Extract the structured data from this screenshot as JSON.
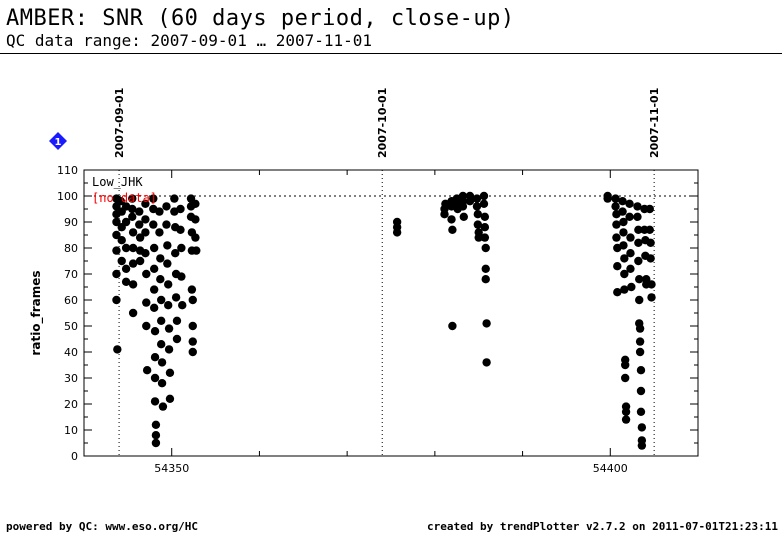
{
  "header": {
    "title": "AMBER: SNR (60 days period, close-up)",
    "subtitle": "QC data range: 2007-09-01 … 2007-11-01"
  },
  "footer": {
    "left": "powered by QC: www.eso.org/HC",
    "right": "created by trendPlotter v2.7.2 on 2011-07-01T21:23:11"
  },
  "colors": {
    "points": "#000000",
    "no_data": "#ff0000",
    "badge": "#1a1aff"
  },
  "chart_data": {
    "type": "scatter",
    "title": "Low_JHK",
    "annotation": "[no data]",
    "badge": "1",
    "xlabel": "",
    "ylabel": "ratio_frames",
    "xlim": [
      54340,
      54410
    ],
    "ylim": [
      0,
      110
    ],
    "x_ticks": [
      54350,
      54400
    ],
    "y_ticks": [
      0,
      10,
      20,
      30,
      40,
      50,
      60,
      70,
      80,
      90,
      100,
      110
    ],
    "reference_line": 100,
    "date_markers": [
      {
        "x": 54344.0,
        "label": "2007-09-01"
      },
      {
        "x": 54374.0,
        "label": "2007-10-01"
      },
      {
        "x": 54405.0,
        "label": "2007-11-01"
      }
    ],
    "series": [
      {
        "name": "Low_JHK",
        "points": [
          [
            54343.7,
            99
          ],
          [
            54343.7,
            96
          ],
          [
            54343.7,
            93
          ],
          [
            54343.7,
            90
          ],
          [
            54343.7,
            85
          ],
          [
            54343.7,
            79
          ],
          [
            54343.7,
            70
          ],
          [
            54343.7,
            60
          ],
          [
            54343.8,
            41
          ],
          [
            54344.2,
            98
          ],
          [
            54344.3,
            94
          ],
          [
            54344.3,
            88
          ],
          [
            54344.3,
            83
          ],
          [
            54344.3,
            75
          ],
          [
            54344.8,
            96
          ],
          [
            54344.8,
            90
          ],
          [
            54344.8,
            80
          ],
          [
            54344.8,
            72
          ],
          [
            54344.8,
            67
          ],
          [
            54345.5,
            99
          ],
          [
            54345.5,
            95
          ],
          [
            54345.5,
            92
          ],
          [
            54345.6,
            86
          ],
          [
            54345.6,
            80
          ],
          [
            54345.6,
            74
          ],
          [
            54345.6,
            66
          ],
          [
            54345.6,
            55
          ],
          [
            54346.3,
            94
          ],
          [
            54346.3,
            89
          ],
          [
            54346.4,
            84
          ],
          [
            54346.4,
            79
          ],
          [
            54346.4,
            75
          ],
          [
            54347.0,
            97
          ],
          [
            54347.0,
            91
          ],
          [
            54347.0,
            86
          ],
          [
            54347.0,
            78
          ],
          [
            54347.1,
            70
          ],
          [
            54347.1,
            59
          ],
          [
            54347.1,
            50
          ],
          [
            54347.2,
            33
          ],
          [
            54347.9,
            99
          ],
          [
            54347.9,
            95
          ],
          [
            54347.9,
            89
          ],
          [
            54348.0,
            80
          ],
          [
            54348.0,
            72
          ],
          [
            54348.0,
            64
          ],
          [
            54348.0,
            57
          ],
          [
            54348.1,
            48
          ],
          [
            54348.1,
            38
          ],
          [
            54348.1,
            30
          ],
          [
            54348.1,
            21
          ],
          [
            54348.2,
            12
          ],
          [
            54348.2,
            8
          ],
          [
            54348.2,
            5
          ],
          [
            54348.6,
            94
          ],
          [
            54348.6,
            86
          ],
          [
            54348.7,
            76
          ],
          [
            54348.7,
            68
          ],
          [
            54348.8,
            60
          ],
          [
            54348.8,
            52
          ],
          [
            54348.8,
            43
          ],
          [
            54348.9,
            36
          ],
          [
            54348.9,
            28
          ],
          [
            54349.0,
            19
          ],
          [
            54349.4,
            96
          ],
          [
            54349.4,
            89
          ],
          [
            54349.5,
            81
          ],
          [
            54349.5,
            74
          ],
          [
            54349.6,
            66
          ],
          [
            54349.6,
            58
          ],
          [
            54349.7,
            49
          ],
          [
            54349.7,
            41
          ],
          [
            54349.8,
            32
          ],
          [
            54349.8,
            22
          ],
          [
            54350.3,
            99
          ],
          [
            54350.3,
            94
          ],
          [
            54350.4,
            88
          ],
          [
            54350.4,
            78
          ],
          [
            54350.5,
            70
          ],
          [
            54350.5,
            61
          ],
          [
            54350.6,
            52
          ],
          [
            54350.6,
            45
          ],
          [
            54351.0,
            95
          ],
          [
            54351.0,
            87
          ],
          [
            54351.1,
            80
          ],
          [
            54351.1,
            69
          ],
          [
            54351.2,
            58
          ],
          [
            54352.2,
            99
          ],
          [
            54352.2,
            96
          ],
          [
            54352.2,
            92
          ],
          [
            54352.3,
            86
          ],
          [
            54352.3,
            79
          ],
          [
            54352.3,
            64
          ],
          [
            54352.4,
            60
          ],
          [
            54352.4,
            50
          ],
          [
            54352.4,
            44
          ],
          [
            54352.4,
            40
          ],
          [
            54352.7,
            97
          ],
          [
            54352.7,
            91
          ],
          [
            54352.7,
            84
          ],
          [
            54352.8,
            79
          ],
          [
            54375.7,
            90
          ],
          [
            54375.7,
            88
          ],
          [
            54375.7,
            86
          ],
          [
            54381.1,
            95
          ],
          [
            54381.1,
            93
          ],
          [
            54381.2,
            97
          ],
          [
            54381.9,
            98
          ],
          [
            54381.9,
            96
          ],
          [
            54381.9,
            91
          ],
          [
            54382.0,
            87
          ],
          [
            54382.0,
            50
          ],
          [
            54382.5,
            99
          ],
          [
            54382.5,
            97
          ],
          [
            54382.6,
            95
          ],
          [
            54383.2,
            100
          ],
          [
            54383.2,
            98
          ],
          [
            54383.2,
            96
          ],
          [
            54383.3,
            92
          ],
          [
            54384.0,
            100
          ],
          [
            54384.0,
            98
          ],
          [
            54384.8,
            99
          ],
          [
            54384.8,
            96
          ],
          [
            54384.9,
            93
          ],
          [
            54384.9,
            89
          ],
          [
            54385.0,
            86
          ],
          [
            54385.0,
            84
          ],
          [
            54385.6,
            100
          ],
          [
            54385.6,
            97
          ],
          [
            54385.7,
            92
          ],
          [
            54385.7,
            88
          ],
          [
            54385.7,
            84
          ],
          [
            54385.8,
            80
          ],
          [
            54385.8,
            72
          ],
          [
            54385.8,
            68
          ],
          [
            54385.9,
            51
          ],
          [
            54385.9,
            36
          ],
          [
            54399.7,
            100
          ],
          [
            54399.7,
            99
          ],
          [
            54400.6,
            99
          ],
          [
            54400.6,
            96
          ],
          [
            54400.7,
            93
          ],
          [
            54400.7,
            89
          ],
          [
            54400.7,
            84
          ],
          [
            54400.8,
            80
          ],
          [
            54400.8,
            73
          ],
          [
            54400.8,
            63
          ],
          [
            54401.4,
            98
          ],
          [
            54401.4,
            94
          ],
          [
            54401.5,
            90
          ],
          [
            54401.5,
            86
          ],
          [
            54401.5,
            81
          ],
          [
            54401.6,
            76
          ],
          [
            54401.6,
            70
          ],
          [
            54401.6,
            64
          ],
          [
            54401.7,
            37
          ],
          [
            54401.7,
            35
          ],
          [
            54401.7,
            30
          ],
          [
            54401.8,
            19
          ],
          [
            54401.8,
            17
          ],
          [
            54401.8,
            14
          ],
          [
            54402.2,
            97
          ],
          [
            54402.2,
            92
          ],
          [
            54402.3,
            84
          ],
          [
            54402.3,
            78
          ],
          [
            54402.3,
            72
          ],
          [
            54402.4,
            65
          ],
          [
            54403.1,
            96
          ],
          [
            54403.1,
            92
          ],
          [
            54403.2,
            87
          ],
          [
            54403.2,
            82
          ],
          [
            54403.2,
            75
          ],
          [
            54403.3,
            68
          ],
          [
            54403.3,
            60
          ],
          [
            54403.3,
            51
          ],
          [
            54403.4,
            49
          ],
          [
            54403.4,
            44
          ],
          [
            54403.4,
            40
          ],
          [
            54403.5,
            33
          ],
          [
            54403.5,
            25
          ],
          [
            54403.5,
            17
          ],
          [
            54403.6,
            11
          ],
          [
            54403.6,
            6
          ],
          [
            54403.6,
            4
          ],
          [
            54403.9,
            95
          ],
          [
            54403.9,
            87
          ],
          [
            54404.0,
            83
          ],
          [
            54404.0,
            77
          ],
          [
            54404.1,
            68
          ],
          [
            54404.1,
            66
          ],
          [
            54404.5,
            95
          ],
          [
            54404.5,
            87
          ],
          [
            54404.6,
            82
          ],
          [
            54404.6,
            76
          ],
          [
            54404.7,
            66
          ],
          [
            54404.7,
            61
          ]
        ]
      }
    ]
  }
}
